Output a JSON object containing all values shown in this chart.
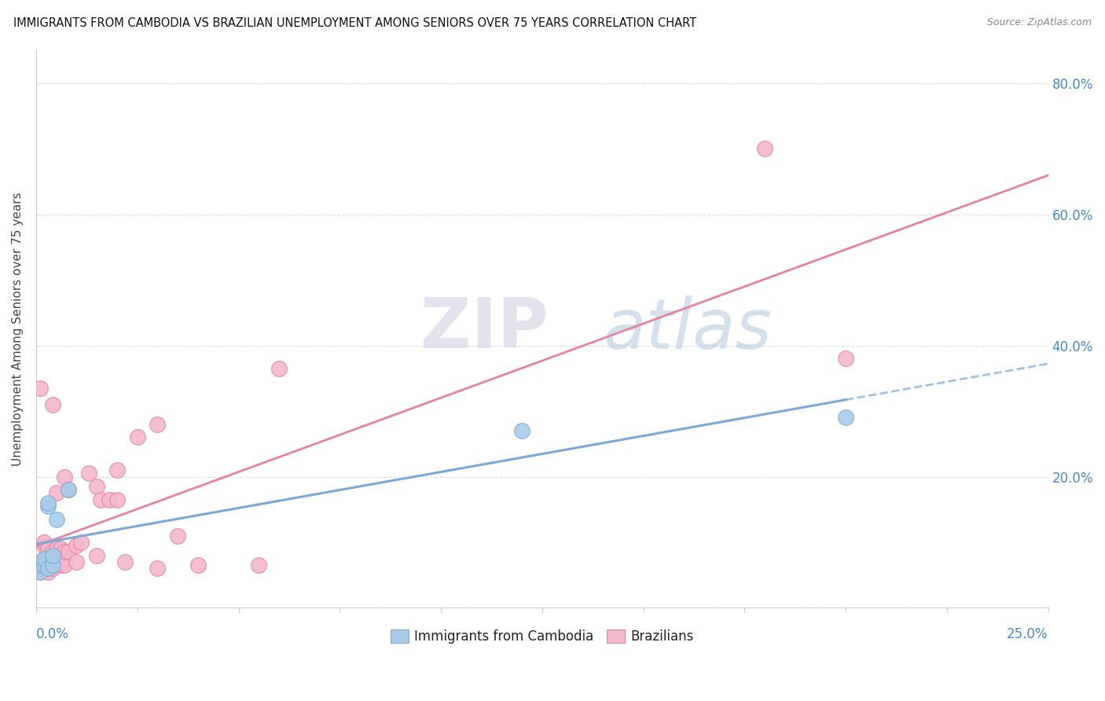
{
  "title": "IMMIGRANTS FROM CAMBODIA VS BRAZILIAN UNEMPLOYMENT AMONG SENIORS OVER 75 YEARS CORRELATION CHART",
  "source": "Source: ZipAtlas.com",
  "ylabel": "Unemployment Among Seniors over 75 years",
  "legend_label_cambodia": "Immigrants from Cambodia",
  "legend_label_brazilians": "Brazilians",
  "color_cambodia": "#a8cce8",
  "color_brazilians": "#f4b8cc",
  "color_cambodia_edge": "#7aaad8",
  "color_brazilians_edge": "#e880a0",
  "color_cambodia_line": "#7aaad8",
  "color_brazilians_line": "#e880a0",
  "watermark_zip": "ZIP",
  "watermark_atlas": "atlas",
  "cambodia_scatter": [
    [
      0.001,
      0.055
    ],
    [
      0.001,
      0.065
    ],
    [
      0.002,
      0.065
    ],
    [
      0.002,
      0.075
    ],
    [
      0.003,
      0.06
    ],
    [
      0.003,
      0.155
    ],
    [
      0.003,
      0.16
    ],
    [
      0.004,
      0.065
    ],
    [
      0.004,
      0.08
    ],
    [
      0.005,
      0.135
    ],
    [
      0.008,
      0.18
    ],
    [
      0.12,
      0.27
    ],
    [
      0.2,
      0.29
    ]
  ],
  "brazilians_scatter": [
    [
      0.001,
      0.055
    ],
    [
      0.001,
      0.06
    ],
    [
      0.001,
      0.065
    ],
    [
      0.001,
      0.335
    ],
    [
      0.002,
      0.06
    ],
    [
      0.002,
      0.065
    ],
    [
      0.002,
      0.07
    ],
    [
      0.002,
      0.075
    ],
    [
      0.002,
      0.095
    ],
    [
      0.002,
      0.1
    ],
    [
      0.003,
      0.055
    ],
    [
      0.003,
      0.06
    ],
    [
      0.003,
      0.065
    ],
    [
      0.003,
      0.075
    ],
    [
      0.003,
      0.08
    ],
    [
      0.003,
      0.09
    ],
    [
      0.004,
      0.06
    ],
    [
      0.004,
      0.085
    ],
    [
      0.004,
      0.31
    ],
    [
      0.005,
      0.075
    ],
    [
      0.005,
      0.09
    ],
    [
      0.005,
      0.175
    ],
    [
      0.006,
      0.065
    ],
    [
      0.006,
      0.07
    ],
    [
      0.006,
      0.09
    ],
    [
      0.007,
      0.065
    ],
    [
      0.007,
      0.085
    ],
    [
      0.007,
      0.2
    ],
    [
      0.008,
      0.085
    ],
    [
      0.008,
      0.18
    ],
    [
      0.01,
      0.07
    ],
    [
      0.01,
      0.095
    ],
    [
      0.011,
      0.1
    ],
    [
      0.013,
      0.205
    ],
    [
      0.015,
      0.08
    ],
    [
      0.015,
      0.185
    ],
    [
      0.016,
      0.165
    ],
    [
      0.018,
      0.165
    ],
    [
      0.02,
      0.165
    ],
    [
      0.02,
      0.21
    ],
    [
      0.022,
      0.07
    ],
    [
      0.025,
      0.26
    ],
    [
      0.03,
      0.06
    ],
    [
      0.03,
      0.28
    ],
    [
      0.035,
      0.11
    ],
    [
      0.04,
      0.065
    ],
    [
      0.055,
      0.065
    ],
    [
      0.06,
      0.365
    ],
    [
      0.18,
      0.7
    ],
    [
      0.2,
      0.38
    ]
  ],
  "xlim": [
    0.0,
    0.25
  ],
  "ylim": [
    0.0,
    0.85
  ],
  "xticks": [
    0.0,
    0.025,
    0.05,
    0.075,
    0.1,
    0.125,
    0.15,
    0.175,
    0.2,
    0.225,
    0.25
  ],
  "yticks": [
    0.0,
    0.2,
    0.4,
    0.6,
    0.8
  ]
}
